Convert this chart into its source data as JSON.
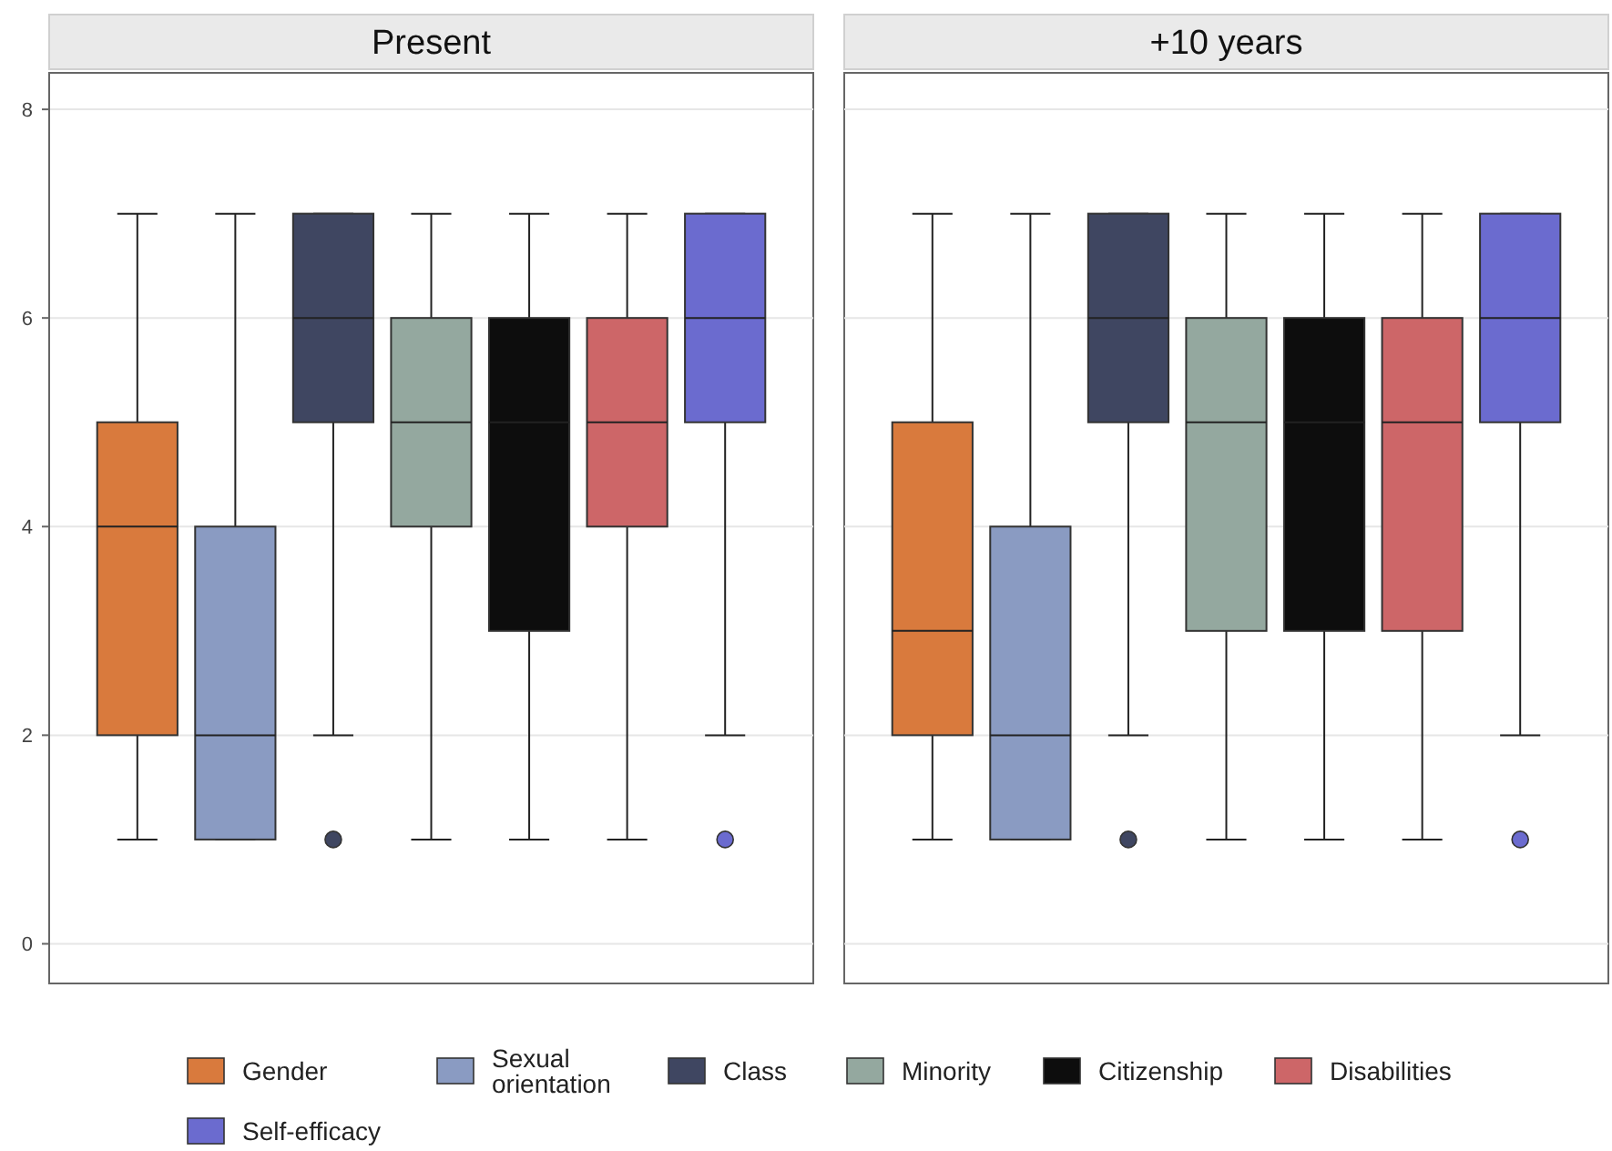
{
  "chart_data": {
    "type": "box",
    "categories": [
      "Present",
      "+10 years"
    ],
    "ylim": [
      -0.38,
      8.35
    ],
    "yticks": [
      0,
      2,
      4,
      6,
      8
    ],
    "grid": "y",
    "legend": "bottom",
    "series": [
      {
        "name": "Gender",
        "color": "#d97a3d",
        "boxes": [
          {
            "low": 1,
            "q1": 2,
            "median": 4,
            "q3": 5,
            "high": 7
          },
          {
            "low": 1,
            "q1": 2,
            "median": 3,
            "q3": 5,
            "high": 7
          }
        ]
      },
      {
        "name": "Sexual orientation",
        "color": "#8a9bc2",
        "boxes": [
          {
            "low": 1,
            "q1": 1,
            "median": 2,
            "q3": 4,
            "high": 7
          },
          {
            "low": 1,
            "q1": 1,
            "median": 2,
            "q3": 4,
            "high": 7
          }
        ]
      },
      {
        "name": "Class",
        "color": "#3f4661",
        "boxes": [
          {
            "low": 2,
            "q1": 5,
            "median": 6,
            "q3": 7,
            "high": 7,
            "outliers": [
              1
            ]
          },
          {
            "low": 2,
            "q1": 5,
            "median": 6,
            "q3": 7,
            "high": 7,
            "outliers": [
              1
            ]
          }
        ]
      },
      {
        "name": "Minority",
        "color": "#94a89f",
        "boxes": [
          {
            "low": 1,
            "q1": 4,
            "median": 5,
            "q3": 6,
            "high": 7
          },
          {
            "low": 1,
            "q1": 3,
            "median": 5,
            "q3": 6,
            "high": 7
          }
        ]
      },
      {
        "name": "Citizenship",
        "color": "#0d0d0d",
        "boxes": [
          {
            "low": 1,
            "q1": 3,
            "median": 5,
            "q3": 6,
            "high": 7
          },
          {
            "low": 1,
            "q1": 3,
            "median": 5,
            "q3": 6,
            "high": 7
          }
        ]
      },
      {
        "name": "Disabilities",
        "color": "#cd6668",
        "boxes": [
          {
            "low": 1,
            "q1": 4,
            "median": 5,
            "q3": 6,
            "high": 7
          },
          {
            "low": 1,
            "q1": 3,
            "median": 5,
            "q3": 6,
            "high": 7
          }
        ]
      },
      {
        "name": "Self-efficacy",
        "color": "#6b6bcf",
        "boxes": [
          {
            "low": 2,
            "q1": 5,
            "median": 6,
            "q3": 7,
            "high": 7,
            "outliers": [
              1
            ]
          },
          {
            "low": 2,
            "q1": 5,
            "median": 6,
            "q3": 7,
            "high": 7,
            "outliers": [
              1
            ]
          }
        ]
      }
    ]
  }
}
